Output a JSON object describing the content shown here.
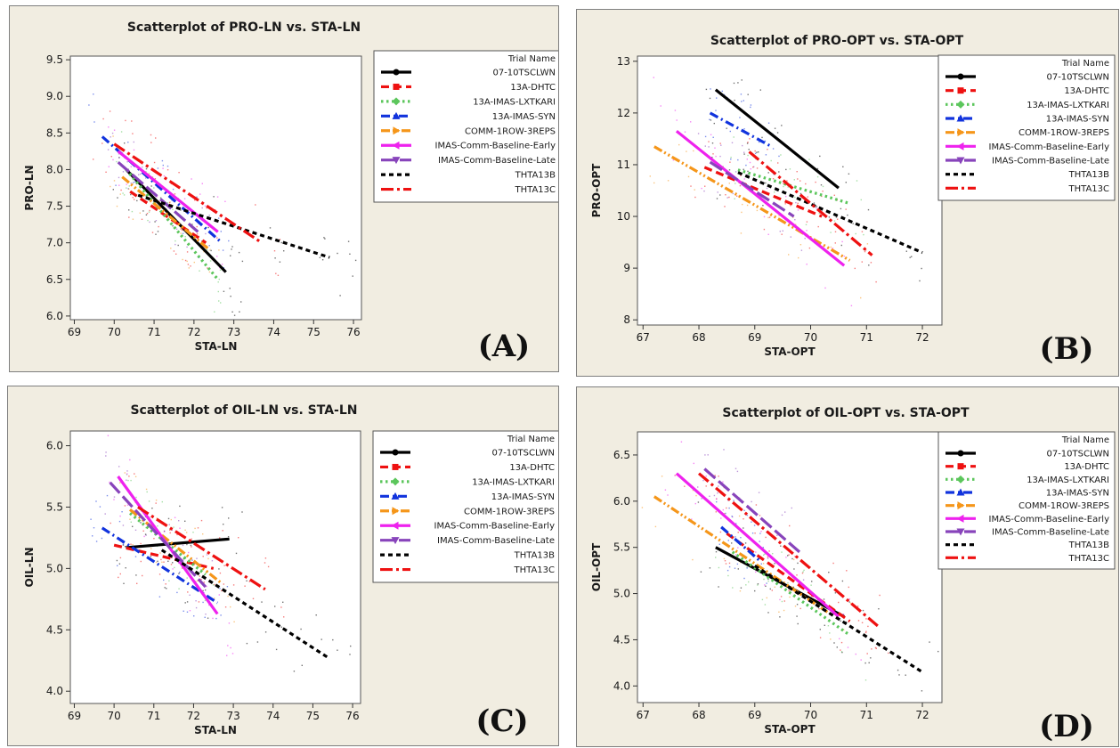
{
  "legend": {
    "title": "Trial Name",
    "entries": [
      {
        "name": "07-10TSCLWN",
        "color": "#000000",
        "dash": "solid",
        "marker": "circle"
      },
      {
        "name": "13A-DHTC",
        "color": "#ee1111",
        "dash": "dash",
        "marker": "square"
      },
      {
        "name": "13A-IMAS-LXTKARI",
        "color": "#5cc65c",
        "dash": "dot",
        "marker": "diamond"
      },
      {
        "name": "13A-IMAS-SYN",
        "color": "#1133dd",
        "dash": "dashdot",
        "marker": "triangle-up"
      },
      {
        "name": "COMM-1ROW-3REPS",
        "color": "#f5961a",
        "dash": "dashdotdot",
        "marker": "triangle-right"
      },
      {
        "name": "IMAS-Comm-Baseline-Early",
        "color": "#ee22ee",
        "dash": "solid",
        "marker": "triangle-left"
      },
      {
        "name": "IMAS-Comm-Baseline-Late",
        "color": "#8844bb",
        "dash": "longdash",
        "marker": "triangle-down"
      },
      {
        "name": "THTA13B",
        "color": "#000000",
        "dash": "shortdash",
        "marker": "none"
      },
      {
        "name": "THTA13C",
        "color": "#ee1111",
        "dash": "longdashdot",
        "marker": "none"
      }
    ]
  },
  "chart_data": [
    {
      "type": "scatter",
      "panel": "(A)",
      "title": "Scatterplot of PRO-LN vs. STA-LN",
      "xlabel": "STA-LN",
      "ylabel": "PRO-LN",
      "xlim": [
        68.9,
        76.2
      ],
      "ylim": [
        5.95,
        9.55
      ],
      "xticks": [
        "69",
        "70",
        "71",
        "72",
        "73",
        "74",
        "75",
        "76"
      ],
      "xtick_values": [
        69,
        70,
        71,
        72,
        73,
        74,
        75,
        76
      ],
      "yticks": [
        "6.0",
        "6.5",
        "7.0",
        "7.5",
        "8.0",
        "8.5",
        "9.0",
        "9.5"
      ],
      "ytick_values": [
        6.0,
        6.5,
        7.0,
        7.5,
        8.0,
        8.5,
        9.0,
        9.5
      ],
      "series": [
        {
          "name": "07-10TSCLWN",
          "x": [
            70.3,
            72.8
          ],
          "y": [
            8.0,
            6.6
          ]
        },
        {
          "name": "13A-DHTC",
          "x": [
            70.4,
            72.3
          ],
          "y": [
            7.7,
            7.0
          ]
        },
        {
          "name": "13A-IMAS-LXTKARI",
          "x": [
            70.3,
            72.6
          ],
          "y": [
            8.0,
            6.5
          ]
        },
        {
          "name": "13A-IMAS-SYN",
          "x": [
            69.7,
            72.7
          ],
          "y": [
            8.45,
            7.0
          ]
        },
        {
          "name": "COMM-1ROW-3REPS",
          "x": [
            70.2,
            72.4
          ],
          "y": [
            7.9,
            6.9
          ]
        },
        {
          "name": "IMAS-Comm-Baseline-Early",
          "x": [
            70.1,
            72.6
          ],
          "y": [
            8.25,
            7.15
          ]
        },
        {
          "name": "IMAS-Comm-Baseline-Late",
          "x": [
            70.1,
            72.1
          ],
          "y": [
            8.1,
            7.15
          ]
        },
        {
          "name": "THTA13B",
          "x": [
            70.6,
            75.4
          ],
          "y": [
            7.65,
            6.8
          ]
        },
        {
          "name": "THTA13C",
          "x": [
            70.0,
            73.7
          ],
          "y": [
            8.35,
            7.0
          ]
        }
      ]
    },
    {
      "type": "scatter",
      "panel": "(B)",
      "title": "Scatterplot of PRO-OPT vs. STA-OPT",
      "xlabel": "STA-OPT",
      "ylabel": "PRO-OPT",
      "xlim": [
        66.9,
        72.35
      ],
      "ylim": [
        7.9,
        13.1
      ],
      "xticks": [
        "67",
        "68",
        "69",
        "70",
        "71",
        "72"
      ],
      "xtick_values": [
        67,
        68,
        69,
        70,
        71,
        72
      ],
      "yticks": [
        "8",
        "9",
        "10",
        "11",
        "12",
        "13"
      ],
      "ytick_values": [
        8,
        9,
        10,
        11,
        12,
        13
      ],
      "series": [
        {
          "name": "07-10TSCLWN",
          "x": [
            68.3,
            70.5
          ],
          "y": [
            12.45,
            10.55
          ]
        },
        {
          "name": "13A-DHTC",
          "x": [
            68.1,
            70.2
          ],
          "y": [
            10.95,
            10.0
          ]
        },
        {
          "name": "13A-IMAS-LXTKARI",
          "x": [
            68.7,
            70.7
          ],
          "y": [
            10.9,
            10.25
          ]
        },
        {
          "name": "13A-IMAS-SYN",
          "x": [
            68.2,
            69.3
          ],
          "y": [
            12.0,
            11.35
          ]
        },
        {
          "name": "COMM-1ROW-3REPS",
          "x": [
            67.2,
            70.7
          ],
          "y": [
            11.35,
            9.15
          ]
        },
        {
          "name": "IMAS-Comm-Baseline-Early",
          "x": [
            67.6,
            70.6
          ],
          "y": [
            11.65,
            9.05
          ]
        },
        {
          "name": "IMAS-Comm-Baseline-Late",
          "x": [
            68.2,
            69.7
          ],
          "y": [
            11.05,
            10.0
          ]
        },
        {
          "name": "THTA13B",
          "x": [
            68.7,
            72.0
          ],
          "y": [
            10.85,
            9.3
          ]
        },
        {
          "name": "THTA13C",
          "x": [
            68.9,
            71.1
          ],
          "y": [
            11.25,
            9.25
          ]
        }
      ]
    },
    {
      "type": "scatter",
      "panel": "(C)",
      "title": "Scatterplot of OIL-LN vs. STA-LN",
      "xlabel": "STA-LN",
      "ylabel": "OIL-LN",
      "xlim": [
        68.9,
        76.2
      ],
      "ylim": [
        3.9,
        6.12
      ],
      "xticks": [
        "69",
        "70",
        "71",
        "72",
        "73",
        "74",
        "75",
        "76"
      ],
      "xtick_values": [
        69,
        70,
        71,
        72,
        73,
        74,
        75,
        76
      ],
      "yticks": [
        "4.0",
        "4.5",
        "5.0",
        "5.5",
        "6.0"
      ],
      "ytick_values": [
        4.0,
        4.5,
        5.0,
        5.5,
        6.0
      ],
      "series": [
        {
          "name": "07-10TSCLWN",
          "x": [
            70.3,
            72.9
          ],
          "y": [
            5.17,
            5.24
          ]
        },
        {
          "name": "13A-DHTC",
          "x": [
            70.0,
            72.5
          ],
          "y": [
            5.19,
            5.0
          ]
        },
        {
          "name": "13A-IMAS-LXTKARI",
          "x": [
            70.4,
            72.3
          ],
          "y": [
            5.45,
            4.95
          ]
        },
        {
          "name": "13A-IMAS-SYN",
          "x": [
            69.7,
            72.6
          ],
          "y": [
            5.33,
            4.72
          ]
        },
        {
          "name": "COMM-1ROW-3REPS",
          "x": [
            70.4,
            72.7
          ],
          "y": [
            5.48,
            4.88
          ]
        },
        {
          "name": "IMAS-Comm-Baseline-Early",
          "x": [
            70.1,
            72.6
          ],
          "y": [
            5.75,
            4.63
          ]
        },
        {
          "name": "IMAS-Comm-Baseline-Late",
          "x": [
            69.9,
            72.3
          ],
          "y": [
            5.7,
            4.85
          ]
        },
        {
          "name": "THTA13B",
          "x": [
            71.2,
            75.4
          ],
          "y": [
            5.15,
            4.27
          ]
        },
        {
          "name": "THTA13C",
          "x": [
            70.6,
            73.8
          ],
          "y": [
            5.5,
            4.83
          ]
        }
      ]
    },
    {
      "type": "scatter",
      "panel": "(D)",
      "title": "Scatterplot of OIL-OPT vs. STA-OPT",
      "xlabel": "STA-OPT",
      "ylabel": "OIL-OPT",
      "xlim": [
        66.9,
        72.35
      ],
      "ylim": [
        3.82,
        6.75
      ],
      "xticks": [
        "67",
        "68",
        "69",
        "70",
        "71",
        "72"
      ],
      "xtick_values": [
        67,
        68,
        69,
        70,
        71,
        72
      ],
      "yticks": [
        "4.0",
        "4.5",
        "5.0",
        "5.5",
        "6.0",
        "6.5"
      ],
      "ytick_values": [
        4.0,
        4.5,
        5.0,
        5.5,
        6.0,
        6.5
      ],
      "series": [
        {
          "name": "07-10TSCLWN",
          "x": [
            68.3,
            70.6
          ],
          "y": [
            5.5,
            4.75
          ]
        },
        {
          "name": "13A-DHTC",
          "x": [
            68.5,
            70.7
          ],
          "y": [
            5.65,
            4.7
          ]
        },
        {
          "name": "13A-IMAS-LXTKARI",
          "x": [
            68.6,
            70.7
          ],
          "y": [
            5.45,
            4.55
          ]
        },
        {
          "name": "13A-IMAS-SYN",
          "x": [
            68.4,
            69.1
          ],
          "y": [
            5.72,
            5.35
          ]
        },
        {
          "name": "COMM-1ROW-3REPS",
          "x": [
            67.2,
            70.3
          ],
          "y": [
            6.05,
            4.8
          ]
        },
        {
          "name": "IMAS-Comm-Baseline-Early",
          "x": [
            67.6,
            70.5
          ],
          "y": [
            6.3,
            4.75
          ]
        },
        {
          "name": "IMAS-Comm-Baseline-Late",
          "x": [
            68.1,
            69.8
          ],
          "y": [
            6.35,
            5.45
          ]
        },
        {
          "name": "THTA13B",
          "x": [
            69.0,
            72.0
          ],
          "y": [
            5.3,
            4.15
          ]
        },
        {
          "name": "THTA13C",
          "x": [
            68.0,
            71.2
          ],
          "y": [
            6.3,
            4.65
          ]
        }
      ]
    }
  ]
}
